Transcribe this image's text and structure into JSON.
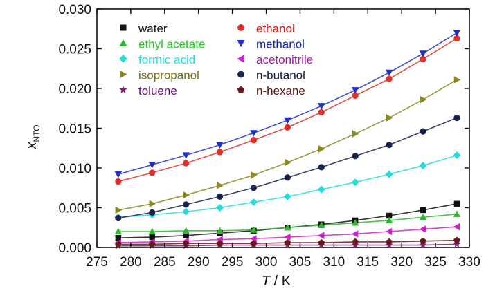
{
  "chart_data": {
    "type": "line",
    "xlabel": {
      "var": "T",
      "unit": " / K"
    },
    "ylabel": {
      "main": "x",
      "sub": "NTO"
    },
    "xlim": [
      275,
      330
    ],
    "ylim": [
      0,
      0.03
    ],
    "x_ticks": [
      "275",
      "280",
      "285",
      "290",
      "295",
      "300",
      "305",
      "310",
      "315",
      "320",
      "325",
      "330"
    ],
    "y_ticks": [
      "0.000",
      "0.005",
      "0.010",
      "0.015",
      "0.020",
      "0.025",
      "0.030"
    ],
    "grid": false,
    "legend_position": "top-left, two columns",
    "x": [
      278.15,
      283.15,
      288.15,
      293.15,
      298.15,
      303.15,
      308.15,
      313.15,
      318.15,
      323.15,
      328.15
    ],
    "series": [
      {
        "name": "water",
        "color": "#111111",
        "marker": "square",
        "legend_color": "#111111",
        "values": [
          0.0012,
          0.0013,
          0.0015,
          0.0018,
          0.0021,
          0.0025,
          0.0029,
          0.0034,
          0.004,
          0.0047,
          0.0055
        ]
      },
      {
        "name": "ethyl acetate",
        "color": "#2db82d",
        "marker": "triangle-up",
        "legend_color": "#22cc22",
        "values": [
          0.002,
          0.002,
          0.0021,
          0.0021,
          0.0022,
          0.0025,
          0.0028,
          0.0031,
          0.0034,
          0.0038,
          0.0042
        ]
      },
      {
        "name": "formic acid",
        "color": "#22dddd",
        "marker": "diamond",
        "legend_color": "#22dddd",
        "values": [
          0.0038,
          0.0041,
          0.0045,
          0.005,
          0.0057,
          0.0064,
          0.0073,
          0.0082,
          0.0092,
          0.0103,
          0.0116
        ]
      },
      {
        "name": "isopropanol",
        "color": "#8a8a1a",
        "marker": "triangle-right",
        "legend_color": "#707010",
        "values": [
          0.0047,
          0.0055,
          0.0066,
          0.0078,
          0.0091,
          0.0107,
          0.0124,
          0.0143,
          0.0163,
          0.0186,
          0.0211
        ]
      },
      {
        "name": "toluene",
        "color": "#7a1a7a",
        "marker": "star",
        "legend_color": "#5a0a6a",
        "values": [
          0.0002,
          0.0002,
          0.0002,
          0.0003,
          0.0003,
          0.0003,
          0.0003,
          0.0003,
          0.0003,
          0.0003,
          0.0004
        ]
      },
      {
        "name": "ethanol",
        "color": "#e0302a",
        "marker": "circle",
        "legend_color": "#e01010",
        "values": [
          0.0083,
          0.0094,
          0.0106,
          0.012,
          0.0135,
          0.0151,
          0.017,
          0.0191,
          0.0212,
          0.0237,
          0.0263
        ]
      },
      {
        "name": "methanol",
        "color": "#2030d0",
        "marker": "triangle-down",
        "legend_color": "#1020c0",
        "values": [
          0.0092,
          0.0104,
          0.0116,
          0.0129,
          0.0144,
          0.016,
          0.0178,
          0.0198,
          0.022,
          0.0244,
          0.027
        ]
      },
      {
        "name": "acetonitrile",
        "color": "#cc22cc",
        "marker": "triangle-left",
        "legend_color": "#b010b0",
        "values": [
          0.0006,
          0.0007,
          0.0008,
          0.001,
          0.0011,
          0.0013,
          0.0015,
          0.0017,
          0.002,
          0.0023,
          0.0026
        ]
      },
      {
        "name": "n-butanol",
        "color": "#1a2250",
        "marker": "circle",
        "legend_color": "#101840",
        "values": [
          0.0037,
          0.0044,
          0.0054,
          0.0064,
          0.0075,
          0.0088,
          0.0101,
          0.0115,
          0.0129,
          0.0146,
          0.0163
        ]
      },
      {
        "name": "n-hexane",
        "color": "#6a1a1a",
        "marker": "pentagon",
        "legend_color": "#5a1010",
        "values": [
          0.0004,
          0.0004,
          0.0005,
          0.0005,
          0.0005,
          0.0006,
          0.0006,
          0.0007,
          0.0007,
          0.0008,
          0.0009
        ]
      }
    ]
  }
}
